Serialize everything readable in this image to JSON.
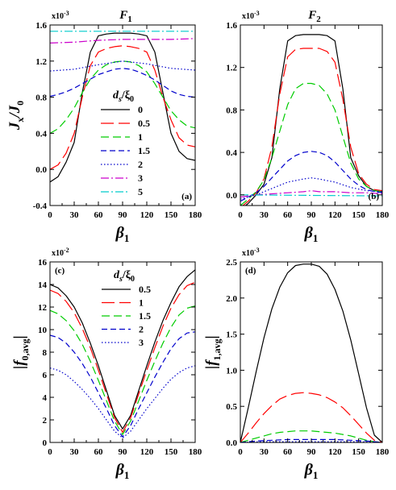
{
  "chart_data": [
    {
      "panel": "a",
      "type": "line",
      "panel_label": "(a)",
      "title": "F",
      "title_sub": "1",
      "exponent_label": "x10",
      "exponent_power": "-3",
      "xlabel": "β",
      "xlabel_sub": "1",
      "ylabel": "J",
      "ylabel_sub": "x",
      "ylabel_rest": "/J",
      "ylabel_rest_sub": "0",
      "xlim": [
        0,
        180
      ],
      "ylim": [
        -0.4,
        1.6
      ],
      "xticks": [
        "0",
        "30",
        "60",
        "90",
        "120",
        "150",
        "180"
      ],
      "yticks": [
        "-0.4",
        "0.0",
        "0.4",
        "0.8",
        "1.2",
        "1.6"
      ],
      "legend": {
        "placement": "center-left",
        "title_main": "d",
        "title_sub": "s",
        "title_slash": "/ξ",
        "title_sub2": "0"
      },
      "series": [
        {
          "name": "0",
          "color": "#000000",
          "dash": "solid",
          "x": [
            0,
            10,
            20,
            30,
            40,
            50,
            60,
            70,
            80,
            90,
            100,
            110,
            120,
            130,
            140,
            150,
            160,
            170,
            180
          ],
          "y": [
            -0.14,
            -0.08,
            0.08,
            0.3,
            0.85,
            1.3,
            1.48,
            1.5,
            1.51,
            1.51,
            1.51,
            1.5,
            1.48,
            1.3,
            0.85,
            0.4,
            0.2,
            0.12,
            0.1
          ]
        },
        {
          "name": "0.5",
          "color": "#ff0000",
          "dash": "long",
          "x": [
            0,
            10,
            20,
            30,
            40,
            50,
            60,
            70,
            80,
            90,
            100,
            110,
            120,
            130,
            140,
            150,
            160,
            170,
            180
          ],
          "y": [
            0.0,
            0.05,
            0.18,
            0.4,
            0.8,
            1.15,
            1.3,
            1.34,
            1.36,
            1.37,
            1.36,
            1.34,
            1.3,
            1.1,
            0.8,
            0.55,
            0.35,
            0.27,
            0.25
          ]
        },
        {
          "name": "1",
          "color": "#00cc00",
          "dash": "dash",
          "x": [
            0,
            10,
            20,
            30,
            40,
            50,
            60,
            70,
            80,
            90,
            100,
            110,
            120,
            130,
            140,
            150,
            160,
            170,
            180
          ],
          "y": [
            0.4,
            0.45,
            0.55,
            0.68,
            0.85,
            1.0,
            1.1,
            1.16,
            1.19,
            1.2,
            1.19,
            1.15,
            1.08,
            0.95,
            0.8,
            0.65,
            0.55,
            0.48,
            0.46
          ]
        },
        {
          "name": "1.5",
          "color": "#0000cc",
          "dash": "medium",
          "x": [
            0,
            10,
            20,
            30,
            40,
            50,
            60,
            70,
            80,
            90,
            100,
            110,
            120,
            130,
            140,
            150,
            160,
            170,
            180
          ],
          "y": [
            0.81,
            0.83,
            0.86,
            0.9,
            0.95,
            1.0,
            1.05,
            1.08,
            1.11,
            1.12,
            1.11,
            1.08,
            1.04,
            0.99,
            0.93,
            0.87,
            0.83,
            0.81,
            0.8
          ]
        },
        {
          "name": "2",
          "color": "#0000cc",
          "dash": "dot",
          "x": [
            0,
            30,
            60,
            90,
            120,
            150,
            180
          ],
          "y": [
            1.09,
            1.11,
            1.16,
            1.2,
            1.17,
            1.12,
            1.1
          ]
        },
        {
          "name": "3",
          "color": "#cc00cc",
          "dash": "dashdot",
          "x": [
            0,
            30,
            60,
            90,
            120,
            150,
            180
          ],
          "y": [
            1.4,
            1.41,
            1.43,
            1.44,
            1.44,
            1.44,
            1.45
          ]
        },
        {
          "name": "5",
          "color": "#00cccc",
          "dash": "dashdot",
          "x": [
            0,
            180
          ],
          "y": [
            1.53,
            1.53
          ]
        }
      ]
    },
    {
      "panel": "b",
      "type": "line",
      "panel_label": "(b)",
      "title": "F",
      "title_sub": "2",
      "exponent_label": "x10",
      "exponent_power": "-3",
      "xlabel": "β",
      "xlabel_sub": "1",
      "xlim": [
        0,
        180
      ],
      "ylim": [
        -0.1,
        1.6
      ],
      "xticks": [
        "0",
        "30",
        "60",
        "90",
        "120",
        "150",
        "180"
      ],
      "yticks": [
        "0.0",
        "0.4",
        "0.8",
        "1.2",
        "1.6"
      ],
      "series": [
        {
          "name": "0",
          "color": "#000000",
          "dash": "solid",
          "x": [
            0,
            10,
            20,
            30,
            40,
            50,
            60,
            70,
            80,
            90,
            100,
            110,
            120,
            130,
            140,
            150,
            160,
            170,
            180
          ],
          "y": [
            -0.14,
            -0.08,
            0.0,
            0.1,
            0.35,
            1.0,
            1.45,
            1.5,
            1.51,
            1.51,
            1.51,
            1.5,
            1.45,
            1.0,
            0.35,
            0.18,
            0.08,
            0.04,
            0.03
          ]
        },
        {
          "name": "0.5",
          "color": "#ff0000",
          "dash": "long",
          "x": [
            0,
            10,
            20,
            30,
            40,
            50,
            60,
            70,
            80,
            90,
            100,
            110,
            120,
            130,
            140,
            150,
            160,
            170,
            180
          ],
          "y": [
            -0.12,
            -0.06,
            0.02,
            0.15,
            0.45,
            0.95,
            1.3,
            1.37,
            1.38,
            1.38,
            1.38,
            1.35,
            1.25,
            0.9,
            0.45,
            0.2,
            0.1,
            0.05,
            0.04
          ]
        },
        {
          "name": "1",
          "color": "#00cc00",
          "dash": "dash",
          "x": [
            0,
            10,
            20,
            30,
            40,
            50,
            60,
            70,
            80,
            90,
            100,
            110,
            120,
            130,
            140,
            150,
            160,
            170,
            180
          ],
          "y": [
            -0.1,
            -0.04,
            0.03,
            0.14,
            0.35,
            0.6,
            0.85,
            1.0,
            1.05,
            1.05,
            1.03,
            0.95,
            0.8,
            0.55,
            0.3,
            0.15,
            0.08,
            0.04,
            0.03
          ]
        },
        {
          "name": "1.5",
          "color": "#0000cc",
          "dash": "medium",
          "x": [
            0,
            10,
            20,
            30,
            40,
            50,
            60,
            70,
            80,
            90,
            100,
            110,
            120,
            130,
            140,
            150,
            160,
            170,
            180
          ],
          "y": [
            -0.06,
            -0.02,
            0.02,
            0.08,
            0.16,
            0.24,
            0.32,
            0.37,
            0.4,
            0.41,
            0.4,
            0.37,
            0.31,
            0.23,
            0.15,
            0.09,
            0.05,
            0.03,
            0.02
          ]
        },
        {
          "name": "2",
          "color": "#0000cc",
          "dash": "dot",
          "x": [
            0,
            20,
            40,
            60,
            80,
            90,
            100,
            120,
            140,
            160,
            180
          ],
          "y": [
            -0.04,
            0.0,
            0.06,
            0.12,
            0.15,
            0.16,
            0.15,
            0.12,
            0.07,
            0.04,
            0.03
          ]
        },
        {
          "name": "3",
          "color": "#cc00cc",
          "dash": "dashdot",
          "x": [
            0,
            20,
            40,
            60,
            80,
            90,
            100,
            120,
            140,
            160,
            180
          ],
          "y": [
            -0.02,
            0.0,
            0.01,
            0.02,
            0.03,
            0.04,
            0.03,
            0.03,
            0.02,
            0.02,
            0.01
          ]
        },
        {
          "name": "5",
          "color": "#00cccc",
          "dash": "dashdot",
          "x": [
            0,
            180
          ],
          "y": [
            0.0,
            -0.01
          ]
        }
      ]
    },
    {
      "panel": "c",
      "type": "line",
      "panel_label": "(c)",
      "exponent_label": "x10",
      "exponent_power": "-2",
      "xlabel": "β",
      "xlabel_sub": "1",
      "ylabel": "|f",
      "ylabel_sub": "0,avg",
      "ylabel_rest": "|",
      "xlim": [
        0,
        180
      ],
      "ylim": [
        0,
        16
      ],
      "xticks": [
        "0",
        "30",
        "60",
        "90",
        "120",
        "150",
        "180"
      ],
      "yticks": [
        "0",
        "2",
        "4",
        "6",
        "8",
        "10",
        "12",
        "14",
        "16"
      ],
      "legend": {
        "placement": "top-right",
        "title_main": "d",
        "title_sub": "s",
        "title_slash": "/ξ",
        "title_sub2": "0"
      },
      "series": [
        {
          "name": "0.5",
          "color": "#000000",
          "dash": "solid",
          "x": [
            0,
            10,
            20,
            30,
            40,
            50,
            60,
            70,
            80,
            90,
            100,
            110,
            120,
            130,
            140,
            150,
            160,
            170,
            180
          ],
          "y": [
            14.0,
            13.7,
            13.0,
            12.0,
            10.6,
            8.8,
            6.8,
            4.6,
            2.4,
            1.2,
            2.4,
            4.6,
            6.8,
            8.9,
            10.8,
            12.4,
            13.8,
            14.7,
            15.3
          ]
        },
        {
          "name": "1",
          "color": "#ff0000",
          "dash": "long",
          "x": [
            0,
            10,
            20,
            30,
            40,
            50,
            60,
            70,
            80,
            90,
            100,
            110,
            120,
            130,
            140,
            150,
            160,
            170,
            180
          ],
          "y": [
            13.5,
            13.2,
            12.5,
            11.5,
            10.1,
            8.4,
            6.4,
            4.3,
            2.2,
            0.9,
            2.2,
            4.3,
            6.4,
            8.4,
            10.3,
            11.9,
            13.1,
            13.9,
            14.2
          ]
        },
        {
          "name": "1.5",
          "color": "#00cc00",
          "dash": "dash",
          "x": [
            0,
            10,
            20,
            30,
            40,
            50,
            60,
            70,
            80,
            90,
            100,
            110,
            120,
            130,
            140,
            150,
            160,
            170,
            180
          ],
          "y": [
            11.7,
            11.4,
            10.8,
            9.9,
            8.7,
            7.2,
            5.5,
            3.7,
            1.9,
            0.7,
            1.9,
            3.7,
            5.5,
            7.2,
            8.8,
            10.2,
            11.3,
            11.9,
            12.1
          ]
        },
        {
          "name": "2",
          "color": "#0000cc",
          "dash": "medium",
          "x": [
            0,
            10,
            20,
            30,
            40,
            50,
            60,
            70,
            80,
            90,
            100,
            110,
            120,
            130,
            140,
            150,
            160,
            170,
            180
          ],
          "y": [
            9.5,
            9.3,
            8.8,
            8.0,
            7.0,
            5.8,
            4.4,
            3.0,
            1.5,
            0.5,
            1.5,
            3.0,
            4.4,
            5.8,
            7.1,
            8.3,
            9.2,
            9.7,
            9.8
          ]
        },
        {
          "name": "3",
          "color": "#0000cc",
          "dash": "dot",
          "x": [
            0,
            10,
            20,
            30,
            40,
            50,
            60,
            70,
            80,
            90,
            100,
            110,
            120,
            130,
            140,
            150,
            160,
            170,
            180
          ],
          "y": [
            6.6,
            6.4,
            6.0,
            5.4,
            4.7,
            3.9,
            3.0,
            2.0,
            1.0,
            0.4,
            1.0,
            2.0,
            3.0,
            3.9,
            4.8,
            5.6,
            6.2,
            6.6,
            6.8
          ]
        }
      ]
    },
    {
      "panel": "d",
      "type": "line",
      "panel_label": "(d)",
      "exponent_label": "x10",
      "exponent_power": "-3",
      "xlabel": "β",
      "xlabel_sub": "1",
      "ylabel": "|f",
      "ylabel_sub": "1,avg",
      "ylabel_rest": "|",
      "xlim": [
        0,
        180
      ],
      "ylim": [
        0,
        2.5
      ],
      "xticks": [
        "0",
        "30",
        "60",
        "90",
        "120",
        "150",
        "180"
      ],
      "yticks": [
        "0.0",
        "0.5",
        "1.0",
        "1.5",
        "2.0",
        "2.5"
      ],
      "series": [
        {
          "name": "0.5",
          "color": "#000000",
          "dash": "solid",
          "x": [
            0,
            10,
            20,
            30,
            40,
            50,
            60,
            70,
            80,
            90,
            100,
            110,
            120,
            130,
            140,
            150,
            160,
            170,
            180
          ],
          "y": [
            0.0,
            0.48,
            0.98,
            1.45,
            1.85,
            2.15,
            2.35,
            2.45,
            2.47,
            2.47,
            2.44,
            2.33,
            2.12,
            1.82,
            1.42,
            0.95,
            0.48,
            0.1,
            0.0
          ]
        },
        {
          "name": "1",
          "color": "#ff0000",
          "dash": "long",
          "x": [
            0,
            10,
            20,
            30,
            40,
            50,
            60,
            70,
            80,
            90,
            100,
            110,
            120,
            130,
            140,
            150,
            160,
            170,
            180
          ],
          "y": [
            0.0,
            0.13,
            0.27,
            0.4,
            0.51,
            0.6,
            0.65,
            0.68,
            0.69,
            0.68,
            0.66,
            0.62,
            0.56,
            0.48,
            0.37,
            0.25,
            0.13,
            0.03,
            0.0
          ]
        },
        {
          "name": "1.5",
          "color": "#00cc00",
          "dash": "dash",
          "x": [
            0,
            10,
            20,
            30,
            40,
            50,
            60,
            70,
            80,
            90,
            100,
            110,
            120,
            130,
            140,
            150,
            160,
            170,
            180
          ],
          "y": [
            0.0,
            0.03,
            0.06,
            0.09,
            0.12,
            0.14,
            0.15,
            0.16,
            0.16,
            0.16,
            0.15,
            0.14,
            0.13,
            0.11,
            0.09,
            0.06,
            0.03,
            0.01,
            0.0
          ]
        },
        {
          "name": "2",
          "color": "#0000cc",
          "dash": "medium",
          "x": [
            0,
            20,
            40,
            60,
            80,
            90,
            100,
            120,
            140,
            160,
            180
          ],
          "y": [
            0.0,
            0.02,
            0.03,
            0.04,
            0.04,
            0.04,
            0.04,
            0.04,
            0.03,
            0.02,
            0.0
          ]
        },
        {
          "name": "3",
          "color": "#0000cc",
          "dash": "dot",
          "x": [
            0,
            30,
            60,
            90,
            120,
            150,
            180
          ],
          "y": [
            0.0,
            0.01,
            0.01,
            0.01,
            0.01,
            0.01,
            0.0
          ]
        }
      ]
    }
  ]
}
